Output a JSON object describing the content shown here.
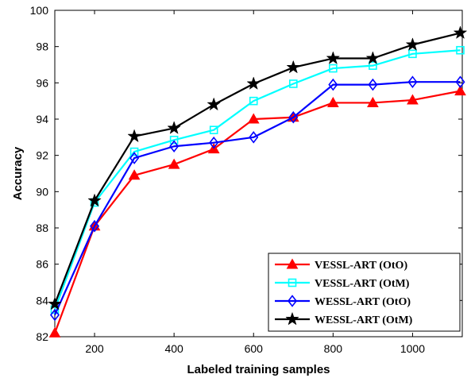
{
  "chart_data": {
    "type": "line",
    "title": "",
    "xlabel": "Labeled training samples",
    "ylabel": "Accuracy",
    "xlim": [
      100,
      1125
    ],
    "ylim": [
      82,
      100
    ],
    "xticks": [
      200,
      400,
      600,
      800,
      1000
    ],
    "yticks": [
      82,
      84,
      86,
      88,
      90,
      92,
      94,
      96,
      98,
      100
    ],
    "x": [
      100,
      200,
      300,
      400,
      500,
      600,
      700,
      800,
      900,
      1000,
      1120
    ],
    "grid": false,
    "legend_position": "bottom-right",
    "series": [
      {
        "name": "VESSL-ART (OtO)",
        "color": "#ff0000",
        "marker": "triangle",
        "values": [
          82.2,
          88.1,
          90.9,
          91.5,
          92.35,
          94.0,
          94.1,
          94.9,
          94.9,
          95.05,
          95.55
        ]
      },
      {
        "name": "VESSL-ART (OtM)",
        "color": "#00ffff",
        "marker": "square",
        "values": [
          83.5,
          89.4,
          92.2,
          92.85,
          93.4,
          95.0,
          95.95,
          96.8,
          96.95,
          97.6,
          97.8
        ]
      },
      {
        "name": "WESSL-ART (OtO)",
        "color": "#0000ff",
        "marker": "diamond",
        "values": [
          83.2,
          88.1,
          91.85,
          92.5,
          92.7,
          93.0,
          94.1,
          95.9,
          95.9,
          96.05,
          96.05
        ]
      },
      {
        "name": "WESSL-ART (OtM)",
        "color": "#000000",
        "marker": "star",
        "values": [
          83.8,
          89.5,
          93.05,
          93.5,
          94.8,
          95.95,
          96.85,
          97.35,
          97.35,
          98.1,
          98.75
        ]
      }
    ]
  }
}
